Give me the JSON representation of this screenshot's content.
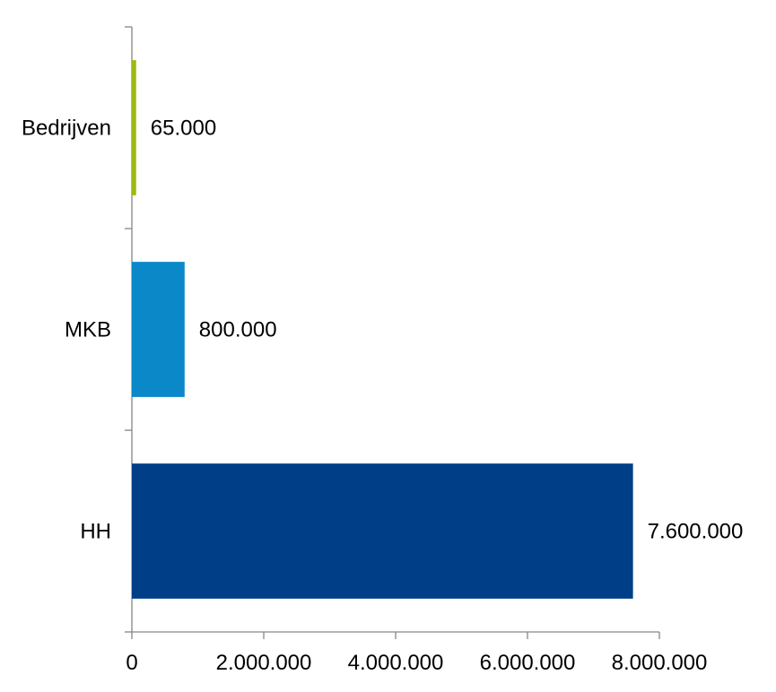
{
  "chart_data": {
    "type": "bar",
    "orientation": "horizontal",
    "categories": [
      "Bedrijven",
      "MKB",
      "HH"
    ],
    "values": [
      65000,
      800000,
      7600000
    ],
    "data_labels": [
      "65.000",
      "800.000",
      "7.600.000"
    ],
    "colors": [
      "#9BBB0F",
      "#0A88C8",
      "#003F87"
    ],
    "xlim": [
      0,
      8000000
    ],
    "x_ticks": [
      0,
      2000000,
      4000000,
      6000000,
      8000000
    ],
    "x_tick_labels": [
      "0",
      "2.000.000",
      "4.000.000",
      "6.000.000",
      "8.000.000"
    ],
    "grid": false,
    "legend": "none",
    "title": "",
    "xlabel": "",
    "ylabel": ""
  }
}
